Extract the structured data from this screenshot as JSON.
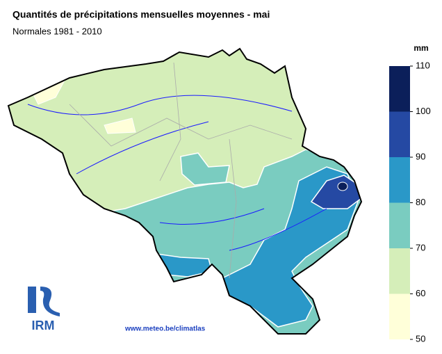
{
  "header": {
    "title": "Quantités de précipitations mensuelles moyennes - mai",
    "subtitle": "Normales 1981 - 2010"
  },
  "legend": {
    "unit": "mm",
    "ticks": [
      50,
      60,
      70,
      80,
      90,
      100,
      110
    ],
    "colors": [
      "#ffffd9",
      "#d5eeb9",
      "#7accc0",
      "#2a98c8",
      "#2549a3",
      "#0b1f5a"
    ]
  },
  "footer": {
    "logo": "IRM",
    "url": "www.meteo.be/climatlas"
  }
}
